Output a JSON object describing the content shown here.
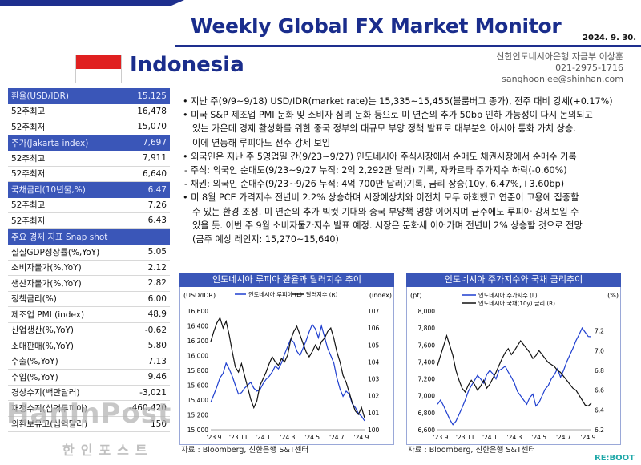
{
  "header": {
    "title": "Weekly Global FX Market Monitor",
    "date": "2024. 9. 30.",
    "country": "Indonesia",
    "contact": [
      "신한인도네시아은행 자금부 이상훈",
      "021-2975-1716",
      "sanghoonlee@shinhan.com"
    ]
  },
  "left_table": [
    {
      "label": "환율(USD/IDR)",
      "value": "15,125",
      "header": true
    },
    {
      "label": "52주최고",
      "value": "16,478"
    },
    {
      "label": "52주최저",
      "value": "15,070"
    },
    {
      "label": "주가(Jakarta index)",
      "value": "7,697",
      "header": true
    },
    {
      "label": "52주최고",
      "value": "7,911"
    },
    {
      "label": "52주최저",
      "value": "6,640"
    },
    {
      "label": "국채금리(10년물,%)",
      "value": "6.47",
      "header": true
    },
    {
      "label": "52주최고",
      "value": "7.26"
    },
    {
      "label": "52주최저",
      "value": "6.43"
    },
    {
      "label": "주요 경제 지표 Snap shot",
      "value": "",
      "snap": true
    },
    {
      "label": "실질GDP성장률(%,YoY)",
      "value": "5.05"
    },
    {
      "label": "소비자물가(%,YoY)",
      "value": "2.12"
    },
    {
      "label": "생산자물가(%,YoY)",
      "value": "2.82"
    },
    {
      "label": "정책금리(%)",
      "value": "6.00"
    },
    {
      "label": "제조업 PMI (index)",
      "value": "48.9"
    },
    {
      "label": "산업생산(%,YoY)",
      "value": "-0.62"
    },
    {
      "label": "소매판매(%,YoY)",
      "value": "5.80"
    },
    {
      "label": "수출(%,YoY)",
      "value": "7.13"
    },
    {
      "label": "수입(%,YoY)",
      "value": "9.46"
    },
    {
      "label": "경상수지(백만달러)",
      "value": "-3,021"
    },
    {
      "label": "재정수지(십억루피아)",
      "value": "-460,420"
    },
    {
      "label": "외환보유고(십억달러)",
      "value": "150"
    }
  ],
  "bullets": [
    "지난 주(9/9~9/18) USD/IDR(market rate)는 15,335~15,455(블룸버그 종가), 전주 대비 강세(+0.17%)",
    "미국 S&P 제조업 PMI 둔화 및 소비자 심리 둔화 등으로 미 연준의 추가 50bp 인하 가능성이 다시 논의되고",
    "있는 가운데 경제 활성화를 위한 중국 정부의 대규모 부양 정책 발표로 대부분의 아시아 통화 가치 상승.",
    "이에 연동해 루피아도 전주 강세 보임",
    "외국인은 지난 주 5영업일 간(9/23~9/27) 인도네시아 주식시장에서 순매도 채권시장에서 순매수 기록",
    "- 주식: 외국인 순매도(9/23~9/27 누적: 2억 2,292만 달러) 기록, 자카르타 주가지수 하락(-0.60%)",
    "- 채권: 외국인 순매수(9/23~9/26 누적: 4억 700만 달러)기록, 금리 상승(10y, 6.47%,+3.60bp)",
    "미 8월 PCE 가격지수 전년비 2.2% 상승하며 시장예상치와 이전치 모두 하회했고 연준이 고용에 집중할",
    "수 있는 환경 조성. 미 연준의 추가 빅컷 기대와 중국 부양책 영향 이어지며 금주에도 루피아 강세보일 수",
    "있을 듯. 이번 주 9월 소비자물가지수 발표 예정. 시장은 둔화세 이어가며 전년비 2% 상승할 것으로 전망",
    "(금주 예상 레인지: 15,270~15,640)"
  ],
  "chart_data": [
    {
      "type": "line",
      "title": "인도네시아 루피아 환율과 달러지수 추이",
      "ylabel": "(USD/IDR)",
      "y2label": "(index)",
      "ylim": [
        15000,
        16600
      ],
      "y2lim": [
        100,
        107
      ],
      "yticks": [
        "15,000",
        "15,200",
        "15,400",
        "15,600",
        "15,800",
        "16,000",
        "16,200",
        "16,400",
        "16,600"
      ],
      "y2ticks": [
        "100",
        "101",
        "102",
        "103",
        "104",
        "105",
        "106",
        "107"
      ],
      "xticks": [
        "'23.9",
        "'23.11",
        "'24.1",
        "'24.3",
        "'24.5",
        "'24.7",
        "'24.9"
      ],
      "series": [
        {
          "name": "인도네시아 루피아 (L)",
          "color": "#1f3fcf",
          "axis": "left",
          "values": [
            15370,
            15470,
            15580,
            15700,
            15760,
            15900,
            15820,
            15720,
            15600,
            15480,
            15500,
            15560,
            15600,
            15640,
            15560,
            15520,
            15540,
            15620,
            15680,
            15720,
            15780,
            15860,
            15820,
            15900,
            16020,
            16120,
            16220,
            16180,
            16060,
            16000,
            16100,
            16200,
            16320,
            16420,
            16360,
            16240,
            16400,
            16250,
            16100,
            16000,
            15900,
            15700,
            15550,
            15450,
            15520,
            15480,
            15350,
            15300,
            15220,
            15180,
            15120
          ]
        },
        {
          "name": "달러지수 (R)",
          "color": "#111111",
          "axis": "right",
          "values": [
            105.2,
            105.8,
            106.3,
            106.6,
            106.0,
            106.4,
            105.6,
            104.6,
            103.7,
            103.4,
            103.9,
            103.2,
            102.5,
            101.8,
            101.3,
            101.7,
            102.6,
            103.0,
            103.4,
            103.9,
            104.3,
            104.0,
            103.8,
            104.2,
            104.0,
            104.4,
            105.3,
            105.8,
            106.1,
            105.6,
            105.1,
            104.6,
            104.3,
            104.6,
            105.0,
            104.7,
            105.2,
            105.4,
            105.8,
            106.0,
            105.4,
            104.6,
            104.0,
            103.2,
            102.8,
            102.2,
            101.6,
            101.1,
            100.9,
            101.3,
            100.7
          ]
        }
      ]
    },
    {
      "type": "line",
      "title": "인도네시아 주가지수와 국채 금리추이",
      "ylabel": "(pt)",
      "y2label": "(%)",
      "ylim": [
        6600,
        8000
      ],
      "y2lim": [
        6.2,
        7.4
      ],
      "yticks": [
        "6,600",
        "6,800",
        "7,000",
        "7,200",
        "7,400",
        "7,600",
        "7,800",
        "8,000"
      ],
      "y2ticks": [
        "6.2",
        "6.4",
        "6.6",
        "6.8",
        "7.0",
        "7.2"
      ],
      "xticks": [
        "'23.9",
        "'23.11",
        "'24.1",
        "'24.3",
        "'24.5",
        "'24.7",
        "'24.9"
      ],
      "series": [
        {
          "name": "인도네시아 주가지수 (L)",
          "color": "#1f3fcf",
          "axis": "left",
          "values": [
            6900,
            6950,
            6880,
            6800,
            6720,
            6660,
            6700,
            6780,
            6860,
            6950,
            7050,
            7120,
            7180,
            7240,
            7200,
            7150,
            7250,
            7300,
            7260,
            7200,
            7300,
            7320,
            7350,
            7280,
            7220,
            7150,
            7050,
            7000,
            6950,
            6900,
            6980,
            7020,
            6880,
            6920,
            7000,
            7080,
            7120,
            7200,
            7250,
            7320,
            7220,
            7300,
            7400,
            7480,
            7560,
            7650,
            7720,
            7800,
            7750,
            7700,
            7697
          ]
        },
        {
          "name": "인도네시아 국채(10y) 금리 (R)",
          "color": "#111111",
          "axis": "right",
          "values": [
            6.85,
            6.95,
            7.05,
            7.15,
            7.05,
            6.95,
            6.8,
            6.7,
            6.62,
            6.58,
            6.65,
            6.7,
            6.66,
            6.6,
            6.64,
            6.7,
            6.62,
            6.66,
            6.72,
            6.78,
            6.85,
            6.92,
            6.98,
            7.02,
            6.96,
            7.0,
            7.05,
            7.1,
            7.06,
            7.02,
            6.98,
            6.92,
            6.95,
            7.0,
            6.96,
            6.92,
            6.88,
            6.86,
            6.84,
            6.8,
            6.78,
            6.74,
            6.7,
            6.66,
            6.62,
            6.6,
            6.55,
            6.5,
            6.45,
            6.44,
            6.47
          ]
        }
      ]
    }
  ],
  "sources": [
    "자료 : Bloomberg, 신한은행 S&T센터",
    "자료 : Bloomberg, 신한은행 S&T센터"
  ],
  "watermark": "HanInPost",
  "watermark_kr": "한인포스트",
  "footer_brand": "RE:BOOT"
}
